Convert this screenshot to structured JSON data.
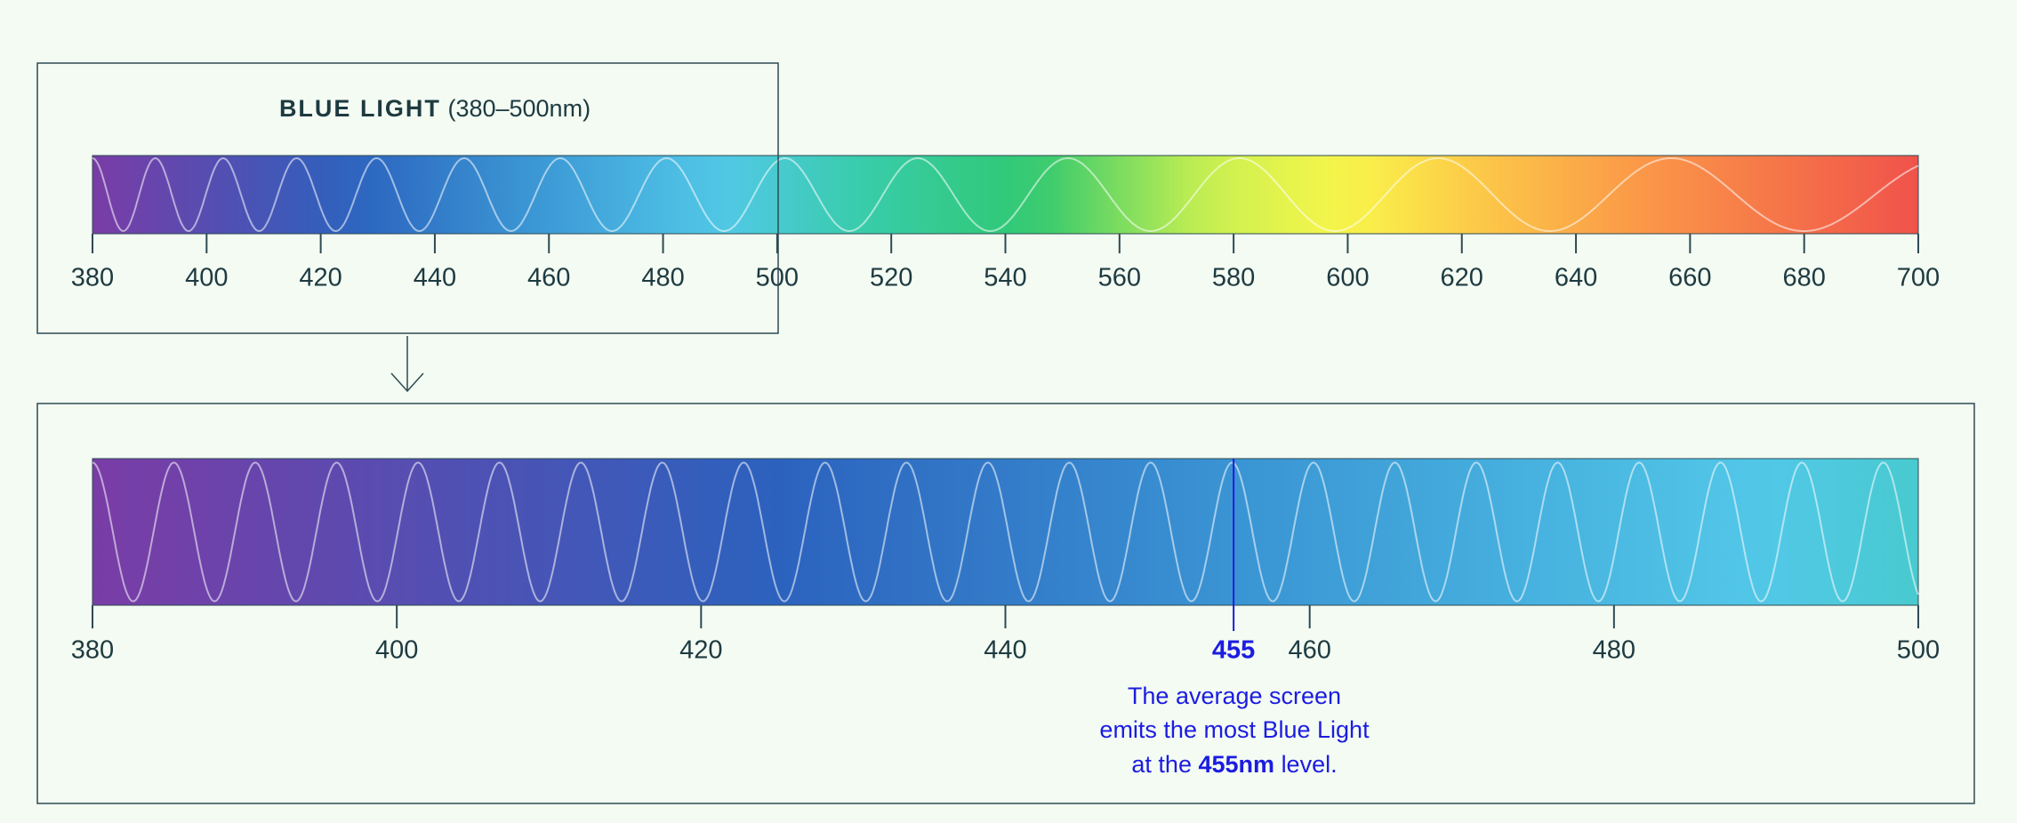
{
  "title": {
    "bold": "BLUE LIGHT",
    "rest": "(380–500nm)"
  },
  "full_spectrum": {
    "xlim": [
      380,
      700
    ],
    "xticks": [
      380,
      400,
      420,
      440,
      460,
      480,
      500,
      520,
      540,
      560,
      580,
      600,
      620,
      640,
      660,
      680,
      700
    ]
  },
  "blue_spectrum": {
    "xlim": [
      380,
      500
    ],
    "xticks": [
      380,
      400,
      420,
      440,
      460,
      480,
      500
    ],
    "marker": 455,
    "annotation": {
      "lines": [
        "The average screen",
        "emits the most Blue Light"
      ],
      "last_before": "at the",
      "last_bold": "455nm",
      "last_after": "level."
    }
  }
}
